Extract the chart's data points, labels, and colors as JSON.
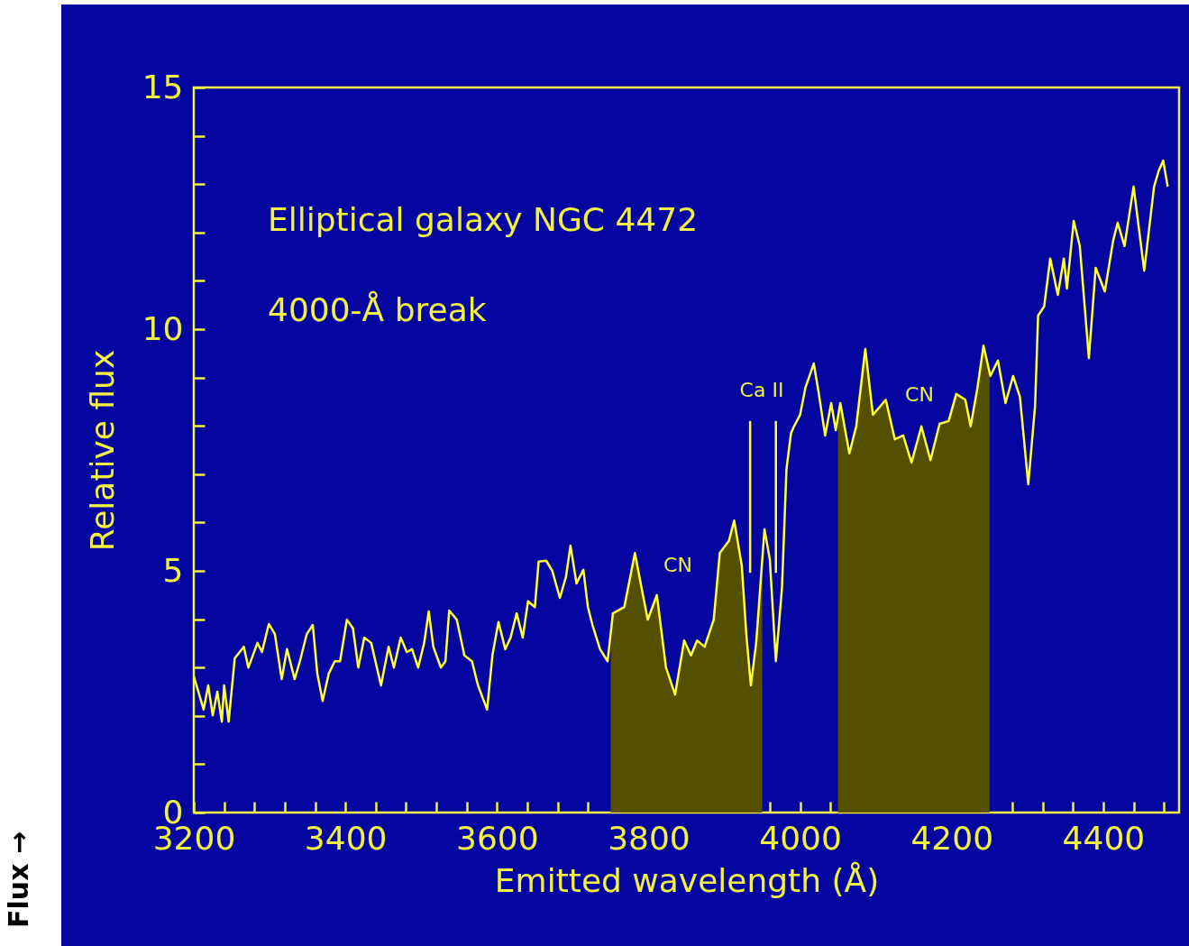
{
  "chart_data": {
    "type": "line",
    "title": "Elliptical galaxy NGC 4472",
    "subtitle": "4000-Å break",
    "xlabel": "Emitted wavelength (Å)",
    "ylabel": "Relative flux",
    "annotations": [
      "CN",
      "Ca II",
      "CN",
      "Flux →"
    ],
    "xlim": [
      3200,
      4500
    ],
    "ylim": [
      0,
      15
    ],
    "xticks": [
      3200,
      {
        "value": 3240,
        "label": null
      },
      {
        "value": 3280,
        "label": null
      },
      {
        "value": 3320,
        "label": null
      },
      {
        "value": 3360,
        "label": null
      },
      3400,
      {
        "value": 3440,
        "label": null
      },
      {
        "value": 3480,
        "label": null
      },
      {
        "value": 3520,
        "label": null
      },
      {
        "value": 3560,
        "label": null
      },
      3600,
      {
        "value": 3640,
        "label": null
      },
      {
        "value": 3680,
        "label": null
      },
      {
        "value": 3720,
        "label": null
      },
      {
        "value": 3760,
        "label": null
      },
      3800,
      {
        "value": 3840,
        "label": null
      },
      {
        "value": 3880,
        "label": null
      },
      {
        "value": 3920,
        "label": null
      },
      {
        "value": 3960,
        "label": null
      },
      4000,
      {
        "value": 4040,
        "label": null
      },
      {
        "value": 4080,
        "label": null
      },
      {
        "value": 4120,
        "label": null
      },
      {
        "value": 4160,
        "label": null
      },
      4200,
      {
        "value": 4240,
        "label": null
      },
      {
        "value": 4280,
        "label": null
      },
      {
        "value": 4320,
        "label": null
      },
      {
        "value": 4360,
        "label": null
      },
      4400,
      {
        "value": 4440,
        "label": null
      },
      {
        "value": 4480,
        "label": null
      }
    ],
    "yticks": [
      0,
      {
        "value": 1,
        "label": null
      },
      {
        "value": 2,
        "label": null
      },
      {
        "value": 3,
        "label": null
      },
      {
        "value": 4,
        "label": null
      },
      5,
      {
        "value": 6,
        "label": null
      },
      {
        "value": 7,
        "label": null
      },
      {
        "value": 8,
        "label": null
      },
      {
        "value": 9,
        "label": null
      },
      10,
      {
        "value": 11,
        "label": null
      },
      {
        "value": 12,
        "label": null
      },
      {
        "value": 13,
        "label": null
      },
      {
        "value": 14,
        "label": null
      },
      15
    ],
    "grid": false,
    "marker": "none",
    "line_style": "solid",
    "series": [
      {
        "type": "area",
        "color": "#555000",
        "x": [
          3750,
          3753,
          3768,
          3782,
          3791,
          3799,
          3811,
          3823,
          3835,
          3847,
          3856,
          3864,
          3874,
          3886,
          3894,
          3906,
          3913,
          3923,
          3929,
          3935,
          3942,
          3950
        ],
        "values": [
          3.3,
          4.12,
          4.25,
          5.37,
          4.63,
          3.99,
          4.5,
          3.0,
          2.44,
          3.56,
          3.25,
          3.56,
          3.43,
          3.99,
          5.37,
          5.62,
          6.04,
          5.11,
          3.69,
          2.63,
          3.51,
          5.6
        ]
      },
      {
        "type": "area",
        "color": "#555000",
        "x": [
          4050,
          4053,
          4065,
          4074,
          4086,
          4096,
          4106,
          4113,
          4125,
          4136,
          4147,
          4160,
          4172,
          4184,
          4196,
          4206,
          4218,
          4225,
          4234,
          4242,
          4250
        ],
        "values": [
          8.2,
          8.47,
          7.43,
          7.99,
          9.59,
          8.23,
          8.41,
          8.54,
          7.72,
          7.8,
          7.24,
          7.99,
          7.29,
          8.04,
          8.1,
          8.66,
          8.54,
          7.99,
          8.79,
          9.66,
          9.1
        ]
      },
      {
        "type": "line",
        "color": "#ffff33",
        "x": [
          3200,
          3213,
          3219,
          3225,
          3231,
          3237,
          3240,
          3246,
          3254,
          3266,
          3272,
          3284,
          3290,
          3299,
          3307,
          3316,
          3323,
          3333,
          3340,
          3349,
          3357,
          3363,
          3370,
          3378,
          3386,
          3393,
          3402,
          3410,
          3417,
          3425,
          3434,
          3447,
          3457,
          3464,
          3473,
          3481,
          3488,
          3496,
          3504,
          3510,
          3516,
          3526,
          3532,
          3537,
          3547,
          3557,
          3567,
          3575,
          3587,
          3594,
          3602,
          3611,
          3618,
          3626,
          3634,
          3641,
          3650,
          3655,
          3665,
          3673,
          3683,
          3691,
          3697,
          3705,
          3714,
          3720,
          3726,
          3736,
          3746,
          3753,
          3768,
          3782,
          3791,
          3799,
          3811,
          3823,
          3835,
          3847,
          3856,
          3864,
          3874,
          3886,
          3894,
          3906,
          3913,
          3923,
          3929,
          3935,
          3942,
          3953,
          3960,
          3968,
          3976,
          3982,
          3988,
          3992,
          4000,
          4007,
          4018,
          4024,
          4033,
          4041,
          4047,
          4053,
          4065,
          4074,
          4086,
          4096,
          4106,
          4113,
          4125,
          4136,
          4147,
          4160,
          4172,
          4184,
          4196,
          4206,
          4218,
          4225,
          4234,
          4242,
          4251,
          4261,
          4271,
          4281,
          4290,
          4301,
          4310,
          4314,
          4322,
          4330,
          4340,
          4348,
          4352,
          4361,
          4369,
          4381,
          4390,
          4402,
          4413,
          4419,
          4428,
          4440,
          4454,
          4467,
          4473,
          4479,
          4485
        ],
        "values": [
          2.82,
          2.13,
          2.63,
          2.01,
          2.5,
          1.88,
          2.63,
          1.88,
          3.19,
          3.43,
          3.0,
          3.51,
          3.32,
          3.9,
          3.69,
          2.76,
          3.38,
          2.76,
          3.13,
          3.69,
          3.88,
          2.87,
          2.31,
          2.87,
          3.13,
          3.13,
          3.99,
          3.81,
          3.0,
          3.62,
          3.51,
          2.63,
          3.43,
          3.0,
          3.62,
          3.32,
          3.38,
          3.0,
          3.51,
          4.16,
          3.43,
          3.0,
          3.13,
          4.18,
          3.99,
          3.25,
          3.13,
          2.63,
          2.13,
          3.25,
          3.94,
          3.38,
          3.62,
          4.12,
          3.62,
          4.37,
          4.25,
          5.19,
          5.21,
          5.0,
          4.44,
          4.87,
          5.52,
          4.74,
          5.02,
          4.25,
          3.88,
          3.38,
          3.13,
          4.12,
          4.25,
          5.37,
          4.63,
          3.99,
          4.5,
          3.0,
          2.44,
          3.56,
          3.25,
          3.56,
          3.43,
          3.99,
          5.37,
          5.62,
          6.04,
          5.11,
          3.69,
          2.63,
          3.51,
          5.86,
          5.24,
          3.13,
          4.63,
          7.11,
          7.85,
          7.99,
          8.23,
          8.79,
          9.29,
          8.73,
          7.8,
          8.47,
          7.91,
          8.47,
          7.43,
          7.99,
          9.59,
          8.23,
          8.41,
          8.54,
          7.72,
          7.8,
          7.24,
          7.99,
          7.29,
          8.04,
          8.1,
          8.66,
          8.54,
          7.99,
          8.79,
          9.66,
          9.03,
          9.35,
          8.47,
          9.03,
          8.6,
          6.79,
          8.41,
          10.28,
          10.47,
          11.46,
          10.71,
          11.46,
          10.84,
          12.24,
          11.72,
          9.4,
          11.27,
          10.78,
          11.83,
          12.2,
          11.72,
          12.95,
          11.21,
          12.95,
          13.27,
          13.49,
          12.95
        ]
      },
      {
        "type": "line",
        "color": "#ffff33",
        "x": [
          3934,
          3934
        ],
        "values": [
          4.96,
          8.1
        ]
      },
      {
        "type": "line",
        "color": "#ffff33",
        "x": [
          3968,
          3968
        ],
        "values": [
          4.96,
          8.1
        ]
      }
    ]
  }
}
